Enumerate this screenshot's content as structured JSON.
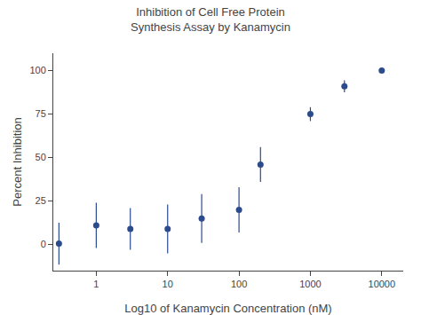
{
  "chart_data": {
    "type": "scatter",
    "title": "Inhibition of Cell Free Protein\nSynthesis Assay by Kanamycin",
    "xlabel": "Log10 of Kanamycin Concentration (nM)",
    "ylabel": "Percent Inhibition",
    "x": [
      0.3,
      1.0,
      3.0,
      10.0,
      30.0,
      100.0,
      200.0,
      1000.0,
      3000.0,
      10000.0
    ],
    "values": [
      0.5,
      11.0,
      9.0,
      9.0,
      15.0,
      20.0,
      46.0,
      75.0,
      91.0,
      100.0
    ],
    "y_err": [
      12.0,
      13.0,
      12.0,
      14.0,
      14.0,
      13.0,
      10.0,
      4.0,
      3.5,
      1.0
    ],
    "color": "#2b4b8c",
    "marker": "circle",
    "log": "x",
    "xlim": [
      0.25,
      20000
    ],
    "xticks": [
      1,
      10,
      100,
      1000,
      10000
    ],
    "ylim": [
      -15,
      110
    ],
    "yticks": [
      0,
      25,
      50,
      75,
      100
    ],
    "grid": false
  }
}
